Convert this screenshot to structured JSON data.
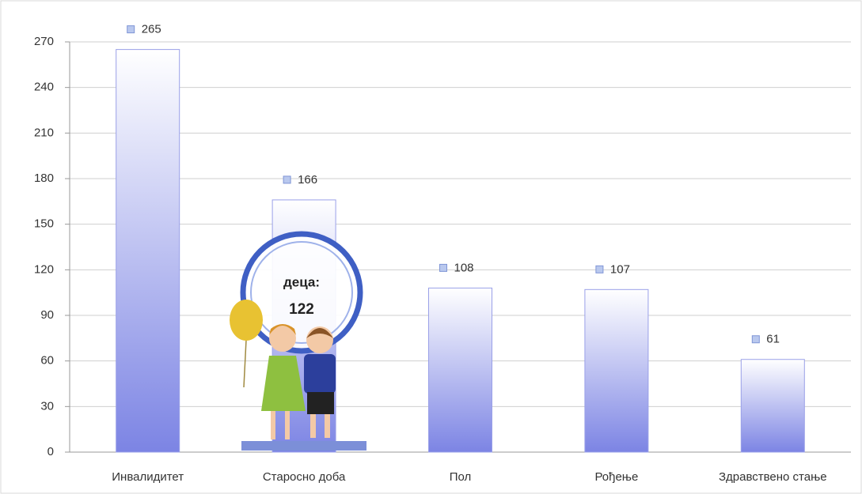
{
  "chart_data": {
    "type": "bar",
    "categories": [
      "Инвалидитет",
      "Старосно доба",
      "Пол",
      "Рођење",
      "Здравствено стање"
    ],
    "values": [
      265,
      166,
      108,
      107,
      61
    ],
    "color": "#7c84e4",
    "ylim": [
      0,
      270
    ],
    "yticks": [
      0,
      30,
      60,
      90,
      120,
      150,
      180,
      210,
      240,
      270
    ],
    "grid": true,
    "annotation": {
      "text": "деца:",
      "value": 122
    }
  }
}
